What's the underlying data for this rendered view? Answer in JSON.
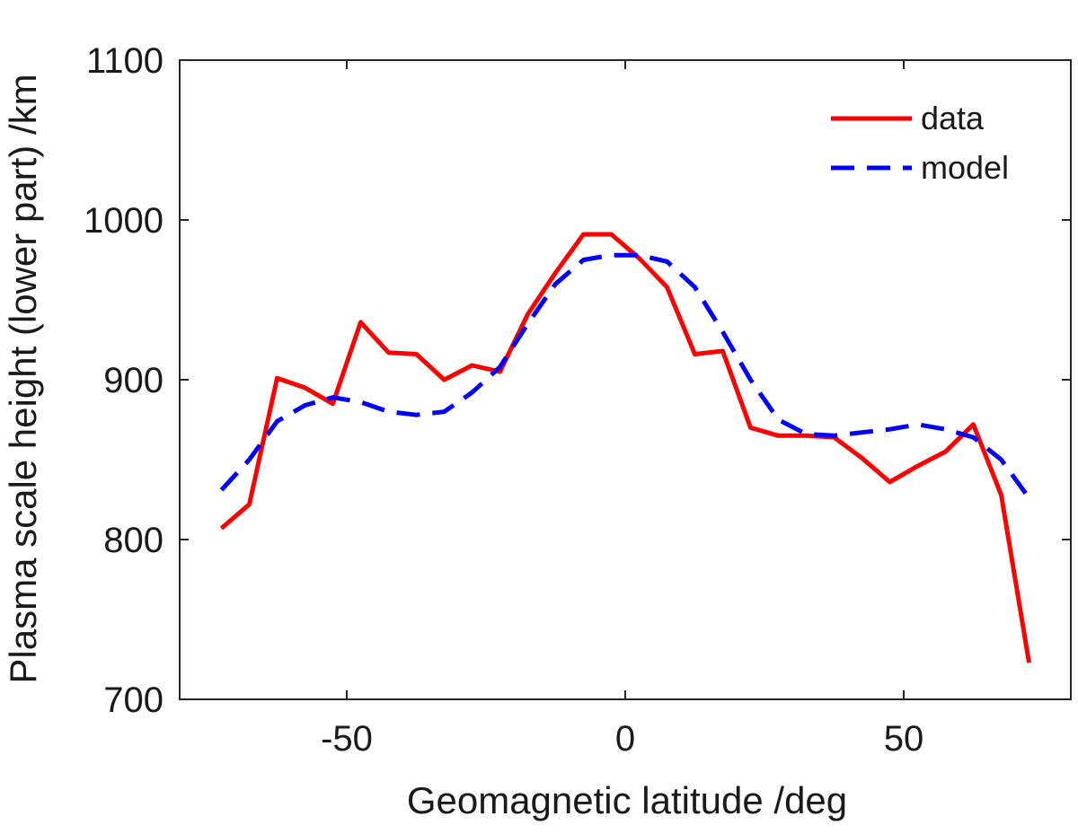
{
  "chart_data": {
    "type": "line",
    "title": "",
    "xlabel": "Geomagnetic latitude /deg",
    "ylabel": "Plasma scale height (lower part) /km",
    "xlim": [
      -80,
      80
    ],
    "ylim": [
      700,
      1100
    ],
    "xticks": [
      -50,
      0,
      50
    ],
    "yticks": [
      700,
      800,
      900,
      1000,
      1100
    ],
    "xtick_labels": [
      "-50",
      "0",
      "50"
    ],
    "ytick_labels": [
      "700",
      "800",
      "900",
      "1000",
      "1100"
    ],
    "grid": false,
    "legend_position": "top-right",
    "series": [
      {
        "name": "data",
        "color": "#ff0000",
        "style": "solid",
        "x": [
          -72.5,
          -67.5,
          -62.5,
          -57.5,
          -52.5,
          -47.5,
          -42.5,
          -37.5,
          -32.5,
          -27.5,
          -22.5,
          -17.5,
          -12.5,
          -7.5,
          -2.5,
          2.5,
          7.5,
          12.5,
          17.5,
          22.5,
          27.5,
          32.5,
          37.5,
          42.5,
          47.5,
          52.5,
          57.5,
          62.5,
          67.5,
          72.5
        ],
        "y": [
          807,
          822,
          901,
          895,
          885,
          936,
          917,
          916,
          900,
          909,
          905,
          941,
          967,
          991,
          991,
          976,
          958,
          916,
          918,
          870,
          865,
          865,
          864,
          851,
          836,
          846,
          855,
          872,
          828,
          723
        ]
      },
      {
        "name": "model",
        "color": "#0000ff",
        "style": "dashed",
        "x": [
          -72.5,
          -67.5,
          -62.5,
          -57.5,
          -52.5,
          -47.5,
          -42.5,
          -37.5,
          -32.5,
          -27.5,
          -22.5,
          -17.5,
          -12.5,
          -7.5,
          -2.5,
          2.5,
          7.5,
          12.5,
          17.5,
          22.5,
          27.5,
          32.5,
          37.5,
          42.5,
          47.5,
          52.5,
          57.5,
          62.5,
          67.5,
          72.5
        ],
        "y": [
          831,
          850,
          874,
          884,
          889,
          886,
          880,
          878,
          880,
          892,
          908,
          935,
          960,
          975,
          978,
          978,
          974,
          958,
          930,
          900,
          875,
          866,
          865,
          867,
          869,
          872,
          869,
          864,
          850,
          826
        ]
      }
    ]
  }
}
